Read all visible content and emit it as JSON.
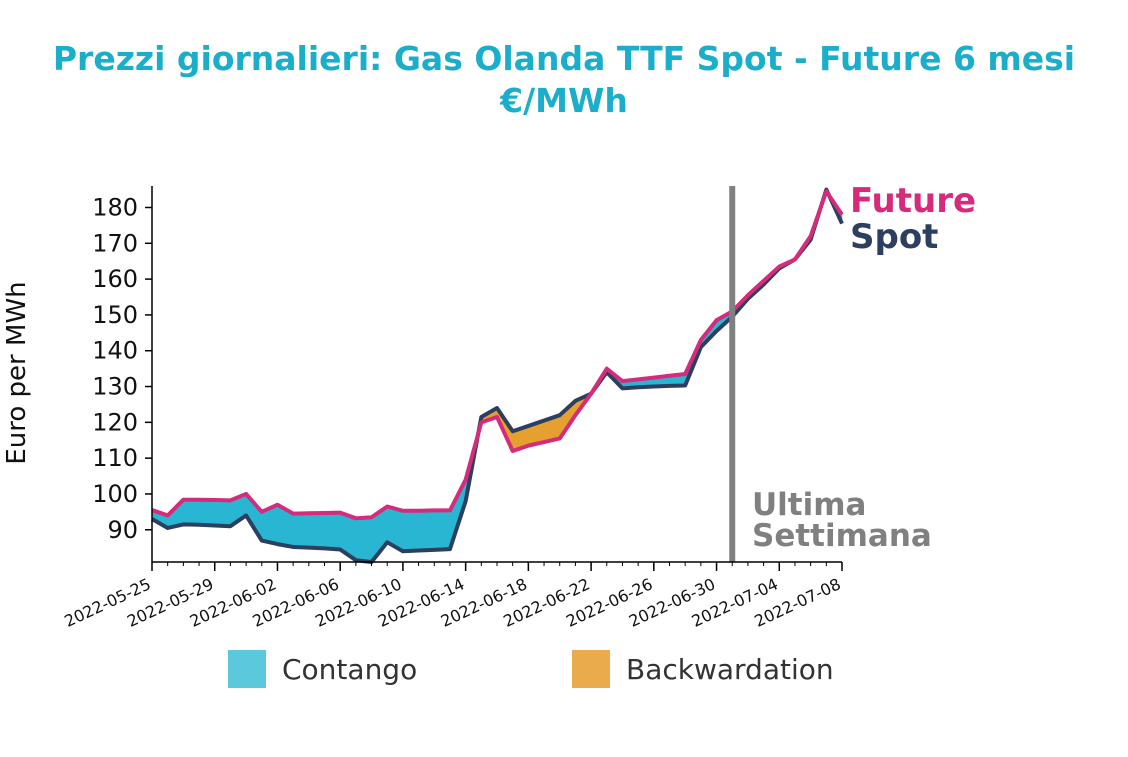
{
  "title": "Prezzi giornalieri: Gas Olanda TTF Spot - Future 6 mesi",
  "subtitle": "€/MWh",
  "colors": {
    "title": "#1aaecb",
    "future": "#d62a7a",
    "spot": "#2d3f5f",
    "contango": "#29b6d3",
    "backwardation": "#e5a030",
    "marker": "#808080"
  },
  "legend": {
    "contango_label": "Contango",
    "backwardation_label": "Backwardation",
    "contango_color": "#5bc8dc",
    "backwardation_color": "#e9ab4c"
  },
  "annotation": {
    "line1": "Ultima",
    "line2": "Settimana",
    "date": "2022-07-01"
  },
  "chart_data": {
    "type": "line",
    "ylabel": "Euro per MWh",
    "xlabel": "",
    "ylim": [
      81,
      186
    ],
    "yticks": [
      90,
      100,
      110,
      120,
      130,
      140,
      150,
      160,
      170,
      180
    ],
    "xlim": [
      "2022-05-25",
      "2022-07-08"
    ],
    "xticks": [
      "2022-05-25",
      "2022-05-29",
      "2022-06-02",
      "2022-06-06",
      "2022-06-10",
      "2022-06-14",
      "2022-06-18",
      "2022-06-22",
      "2022-06-26",
      "2022-06-30",
      "2022-07-04",
      "2022-07-08"
    ],
    "grid": false,
    "legend_placement": "bottom",
    "series": [
      {
        "name": "Future",
        "x": [
          "2022-05-25",
          "2022-05-26",
          "2022-05-27",
          "2022-05-28",
          "2022-05-29",
          "2022-05-30",
          "2022-05-31",
          "2022-06-01",
          "2022-06-02",
          "2022-06-03",
          "2022-06-04",
          "2022-06-05",
          "2022-06-06",
          "2022-06-07",
          "2022-06-08",
          "2022-06-09",
          "2022-06-10",
          "2022-06-11",
          "2022-06-12",
          "2022-06-13",
          "2022-06-14",
          "2022-06-15",
          "2022-06-16",
          "2022-06-17",
          "2022-06-18",
          "2022-06-19",
          "2022-06-20",
          "2022-06-21",
          "2022-06-22",
          "2022-06-23",
          "2022-06-24",
          "2022-06-25",
          "2022-06-26",
          "2022-06-27",
          "2022-06-28",
          "2022-06-29",
          "2022-06-30",
          "2022-07-01",
          "2022-07-02",
          "2022-07-03",
          "2022-07-04",
          "2022-07-05",
          "2022-07-06",
          "2022-07-07",
          "2022-07-08"
        ],
        "values": [
          95.5,
          94,
          98.4,
          98.4,
          98.3,
          98.2,
          100,
          95,
          97,
          94.5,
          94.6,
          94.7,
          94.8,
          93.2,
          93.5,
          96.5,
          95.3,
          95.3,
          95.4,
          95.4,
          104,
          120,
          121.5,
          112,
          113.5,
          114.5,
          115.5,
          122,
          128,
          135,
          131.5,
          132,
          132.5,
          133,
          133.5,
          143,
          148.5,
          151,
          155.5,
          159.5,
          163.5,
          165.5,
          172,
          184.5,
          178
        ]
      },
      {
        "name": "Spot",
        "x": [
          "2022-05-25",
          "2022-05-26",
          "2022-05-27",
          "2022-05-28",
          "2022-05-29",
          "2022-05-30",
          "2022-05-31",
          "2022-06-01",
          "2022-06-02",
          "2022-06-03",
          "2022-06-04",
          "2022-06-05",
          "2022-06-06",
          "2022-06-07",
          "2022-06-08",
          "2022-06-09",
          "2022-06-10",
          "2022-06-11",
          "2022-06-12",
          "2022-06-13",
          "2022-06-14",
          "2022-06-15",
          "2022-06-16",
          "2022-06-17",
          "2022-06-18",
          "2022-06-19",
          "2022-06-20",
          "2022-06-21",
          "2022-06-22",
          "2022-06-23",
          "2022-06-24",
          "2022-06-25",
          "2022-06-26",
          "2022-06-27",
          "2022-06-28",
          "2022-06-29",
          "2022-06-30",
          "2022-07-01",
          "2022-07-02",
          "2022-07-03",
          "2022-07-04",
          "2022-07-05",
          "2022-07-06",
          "2022-07-07",
          "2022-07-08"
        ],
        "values": [
          93,
          90.5,
          91.5,
          91.4,
          91.2,
          91,
          94,
          87,
          86,
          85.2,
          85,
          84.8,
          84.5,
          81.5,
          81,
          86.5,
          84,
          84.2,
          84.4,
          84.6,
          98,
          121.5,
          124,
          117.5,
          119,
          120.5,
          122,
          126,
          128,
          134,
          129.5,
          129.8,
          130,
          130.2,
          130.3,
          141,
          145.5,
          149.5,
          154.5,
          158.5,
          163,
          165.5,
          171,
          185,
          175.5
        ]
      }
    ]
  }
}
